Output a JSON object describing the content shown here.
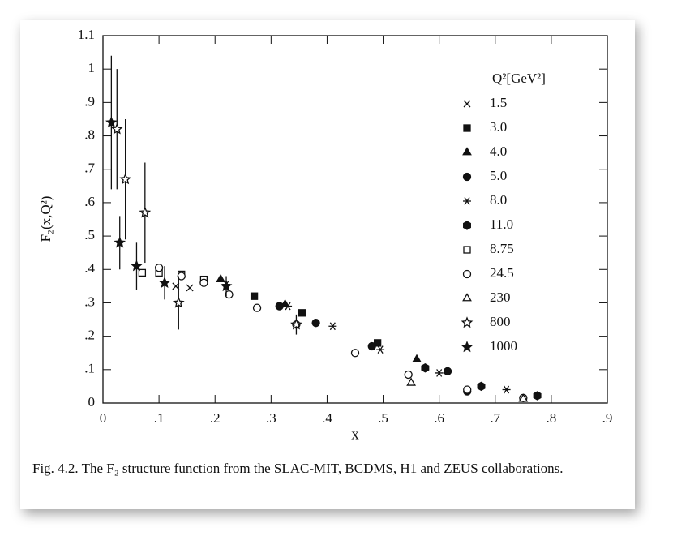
{
  "chart_data": {
    "type": "scatter",
    "xlabel": "x",
    "ylabel": "F₂(x,Q²)",
    "legend_title": "Q²[GeV²]",
    "legend": "upper right",
    "caption": "Fig. 4.2.  The F₂ structure function from the SLAC-MIT, BCDMS, H1 and ZEUS collaborations.",
    "xlim": [
      0,
      0.9
    ],
    "ylim": [
      0,
      1.1
    ],
    "xticks": [
      0,
      {
        "value": 0.1,
        "label": ".1"
      },
      {
        "value": 0.2,
        "label": ".2"
      },
      {
        "value": 0.3,
        "label": ".3"
      },
      {
        "value": 0.4,
        "label": ".4"
      },
      {
        "value": 0.5,
        "label": ".5"
      },
      {
        "value": 0.6,
        "label": ".6"
      },
      {
        "value": 0.7,
        "label": ".7"
      },
      {
        "value": 0.8,
        "label": ".8"
      },
      {
        "value": 0.9,
        "label": ".9"
      }
    ],
    "yticks": [
      0,
      {
        "value": 0.1,
        "label": ".1"
      },
      {
        "value": 0.2,
        "label": ".2"
      },
      {
        "value": 0.3,
        "label": ".3"
      },
      {
        "value": 0.4,
        "label": ".4"
      },
      {
        "value": 0.5,
        "label": ".5"
      },
      {
        "value": 0.6,
        "label": ".6"
      },
      {
        "value": 0.7,
        "label": ".7"
      },
      {
        "value": 0.8,
        "label": ".8"
      },
      {
        "value": 0.9,
        "label": ".9"
      },
      1,
      1.1
    ],
    "series": [
      {
        "name": "1.5",
        "marker": "cross",
        "color": "#111",
        "x": [
          0.13,
          0.155
        ],
        "values": [
          0.35,
          0.345
        ]
      },
      {
        "name": "3.0",
        "marker": "square-filled",
        "color": "#111",
        "x": [
          0.27,
          0.355,
          0.49
        ],
        "values": [
          0.32,
          0.27,
          0.18
        ]
      },
      {
        "name": "4.0",
        "marker": "triangle-filled",
        "color": "#111",
        "x": [
          0.21,
          0.325,
          0.56
        ],
        "values": [
          0.37,
          0.295,
          0.13
        ]
      },
      {
        "name": "5.0",
        "marker": "circle-filled",
        "color": "#111",
        "x": [
          0.315,
          0.38,
          0.48,
          0.615,
          0.65
        ],
        "values": [
          0.29,
          0.24,
          0.17,
          0.095,
          0.035
        ]
      },
      {
        "name": "8.0",
        "marker": "asterisk",
        "color": "#111",
        "x": [
          0.22,
          0.33,
          0.41,
          0.495,
          0.6,
          0.72
        ],
        "values": [
          0.355,
          0.29,
          0.23,
          0.16,
          0.09,
          0.04
        ]
      },
      {
        "name": "11.0",
        "marker": "pentagon-filled",
        "color": "#111",
        "x": [
          0.575,
          0.675,
          0.775
        ],
        "values": [
          0.105,
          0.05,
          0.022
        ]
      },
      {
        "name": "8.75",
        "marker": "square-open",
        "color": "#111",
        "x": [
          0.07,
          0.1,
          0.14,
          0.18
        ],
        "values": [
          0.39,
          0.39,
          0.385,
          0.37
        ]
      },
      {
        "name": "24.5",
        "marker": "circle-open",
        "color": "#111",
        "x": [
          0.1,
          0.14,
          0.18,
          0.225,
          0.275,
          0.345,
          0.45,
          0.545,
          0.65,
          0.75
        ],
        "values": [
          0.405,
          0.38,
          0.36,
          0.325,
          0.285,
          0.235,
          0.15,
          0.085,
          0.04,
          0.015
        ]
      },
      {
        "name": "230",
        "marker": "triangle-open",
        "color": "#111",
        "x": [
          0.55,
          0.75
        ],
        "values": [
          0.06,
          0.012
        ]
      },
      {
        "name": "800",
        "marker": "star-open",
        "color": "#111",
        "x": [
          0.025,
          0.04,
          0.075,
          0.135,
          0.345
        ],
        "values": [
          0.82,
          0.67,
          0.57,
          0.3,
          0.235
        ],
        "errors": [
          0.18,
          0.18,
          0.15,
          0.08,
          0.03
        ]
      },
      {
        "name": "1000",
        "marker": "star-filled",
        "color": "#111",
        "x": [
          0.015,
          0.03,
          0.06,
          0.11,
          0.22
        ],
        "values": [
          0.84,
          0.48,
          0.41,
          0.36,
          0.35
        ],
        "errors": [
          0.2,
          0.08,
          0.07,
          0.05,
          0.03
        ]
      }
    ]
  }
}
